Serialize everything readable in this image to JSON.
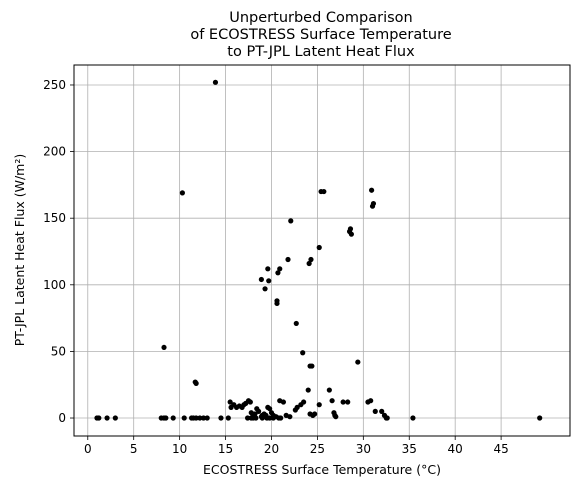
{
  "chart_data": {
    "type": "scatter",
    "title": [
      "Unperturbed Comparison",
      "of ECOSTRESS Surface Temperature",
      "to PT-JPL Latent Heat Flux"
    ],
    "xlabel": "ECOSTRESS Surface Temperature (°C)",
    "ylabel": "PT-JPL Latent Heat Flux (W/m²)",
    "xlim": [
      -1.5,
      52.5
    ],
    "ylim": [
      -13.5,
      265
    ],
    "xticks": [
      0,
      5,
      10,
      15,
      20,
      25,
      30,
      35,
      40,
      45
    ],
    "yticks": [
      0,
      50,
      100,
      150,
      200,
      250
    ],
    "grid": true,
    "legend": "none",
    "marker_color": "#000000",
    "points": [
      [
        1.0,
        0
      ],
      [
        1.2,
        0
      ],
      [
        2.1,
        0
      ],
      [
        3.0,
        0
      ],
      [
        8.0,
        0
      ],
      [
        8.3,
        0
      ],
      [
        8.5,
        0
      ],
      [
        9.3,
        0
      ],
      [
        10.5,
        0
      ],
      [
        11.3,
        0
      ],
      [
        11.5,
        0
      ],
      [
        11.8,
        0
      ],
      [
        12.2,
        0
      ],
      [
        12.6,
        0
      ],
      [
        13.0,
        0
      ],
      [
        14.5,
        0
      ],
      [
        15.3,
        0
      ],
      [
        17.4,
        0
      ],
      [
        17.8,
        0
      ],
      [
        18.0,
        0
      ],
      [
        18.3,
        0
      ],
      [
        19.0,
        0
      ],
      [
        19.5,
        0
      ],
      [
        19.8,
        0
      ],
      [
        20.2,
        0
      ],
      [
        20.8,
        0
      ],
      [
        21.0,
        0
      ],
      [
        32.5,
        0
      ],
      [
        32.6,
        0
      ],
      [
        35.4,
        0
      ],
      [
        49.2,
        0
      ],
      [
        8.3,
        53
      ],
      [
        11.7,
        27
      ],
      [
        11.8,
        26
      ],
      [
        15.5,
        12
      ],
      [
        15.6,
        8
      ],
      [
        15.9,
        10
      ],
      [
        16.2,
        8
      ],
      [
        16.5,
        9
      ],
      [
        16.8,
        8
      ],
      [
        17.0,
        10
      ],
      [
        17.2,
        11
      ],
      [
        17.5,
        13
      ],
      [
        17.7,
        12
      ],
      [
        17.8,
        4
      ],
      [
        18.0,
        2
      ],
      [
        18.2,
        3
      ],
      [
        18.4,
        7
      ],
      [
        18.6,
        5
      ],
      [
        18.9,
        1
      ],
      [
        19.0,
        2
      ],
      [
        19.2,
        3
      ],
      [
        19.4,
        2
      ],
      [
        19.6,
        8
      ],
      [
        19.8,
        7
      ],
      [
        20.0,
        4
      ],
      [
        20.2,
        2
      ],
      [
        20.5,
        1
      ],
      [
        20.9,
        13
      ],
      [
        21.3,
        12
      ],
      [
        21.6,
        2
      ],
      [
        22.0,
        1
      ],
      [
        22.6,
        6
      ],
      [
        22.8,
        8
      ],
      [
        23.2,
        10
      ],
      [
        23.5,
        12
      ],
      [
        24.0,
        21
      ],
      [
        24.2,
        3
      ],
      [
        24.5,
        2
      ],
      [
        24.7,
        3
      ],
      [
        25.2,
        10
      ],
      [
        26.3,
        21
      ],
      [
        26.6,
        13
      ],
      [
        26.8,
        4
      ],
      [
        26.9,
        2
      ],
      [
        27.0,
        1
      ],
      [
        27.8,
        12
      ],
      [
        28.3,
        12
      ],
      [
        30.5,
        12
      ],
      [
        30.8,
        13
      ],
      [
        31.3,
        5
      ],
      [
        32.0,
        5
      ],
      [
        32.3,
        2
      ],
      [
        10.3,
        169
      ],
      [
        13.9,
        252
      ],
      [
        18.9,
        104
      ],
      [
        19.3,
        97
      ],
      [
        19.6,
        112
      ],
      [
        19.7,
        103
      ],
      [
        20.7,
        109
      ],
      [
        20.9,
        112
      ],
      [
        20.6,
        88
      ],
      [
        20.6,
        86
      ],
      [
        21.8,
        119
      ],
      [
        22.1,
        148
      ],
      [
        22.7,
        71
      ],
      [
        23.4,
        49
      ],
      [
        24.1,
        116
      ],
      [
        24.3,
        119
      ],
      [
        24.2,
        39
      ],
      [
        24.4,
        39
      ],
      [
        25.2,
        128
      ],
      [
        25.4,
        170
      ],
      [
        25.7,
        170
      ],
      [
        28.5,
        140
      ],
      [
        28.6,
        142
      ],
      [
        28.7,
        138
      ],
      [
        29.4,
        42
      ],
      [
        30.9,
        171
      ],
      [
        31.0,
        159
      ],
      [
        31.1,
        161
      ]
    ]
  }
}
